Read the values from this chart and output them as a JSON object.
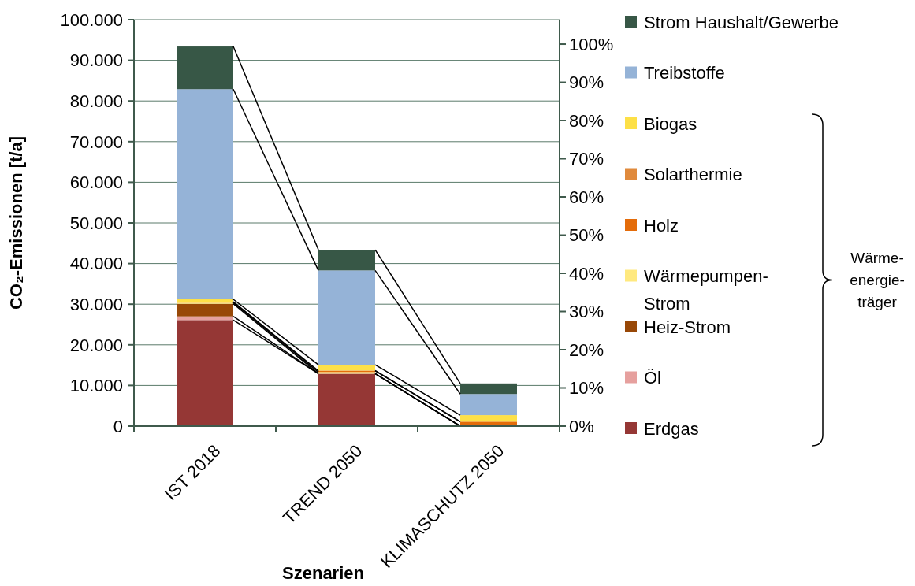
{
  "chart_data": {
    "type": "bar",
    "stacked": true,
    "xlabel": "Szenarien",
    "ylabel": "CO₂-Emissionen [t/a]",
    "categories": [
      "IST 2018",
      "TREND 2050",
      "KLIMASCHUTZ 2050"
    ],
    "series": [
      {
        "name": "Erdgas",
        "color": "#953735",
        "values": [
          26100,
          12900,
          0
        ]
      },
      {
        "name": "Öl",
        "color": "#e6a09e",
        "values": [
          900,
          0,
          0
        ]
      },
      {
        "name": "Heiz-Strom",
        "color": "#984807",
        "values": [
          3100,
          0,
          0
        ]
      },
      {
        "name": "Wärmepumpen-Strom",
        "color": "#ffe97f",
        "values": [
          300,
          400,
          null
        ]
      },
      {
        "name": "Holz",
        "color": "#e46c0a",
        "values": [
          200,
          300,
          1100
        ]
      },
      {
        "name": "Solarthermie",
        "color": "#e08a3c",
        "values": [
          null,
          100,
          0
        ]
      },
      {
        "name": "Biogas",
        "color": "#fde047",
        "values": [
          600,
          1400,
          1600
        ]
      },
      {
        "name": "Treibstoffe",
        "color": "#95b3d7",
        "values": [
          51700,
          23200,
          5200
        ]
      },
      {
        "name": "Strom Haushalt/Gewerbe",
        "color": "#375746",
        "values": [
          10500,
          5100,
          2600
        ]
      }
    ],
    "ylim": [
      0,
      100000
    ],
    "yticks": [
      {
        "value": 0,
        "label": "0"
      },
      {
        "value": 10000,
        "label": "10.000"
      },
      {
        "value": 20000,
        "label": "20.000"
      },
      {
        "value": 30000,
        "label": "30.000"
      },
      {
        "value": 40000,
        "label": "40.000"
      },
      {
        "value": 50000,
        "label": "50.000"
      },
      {
        "value": 60000,
        "label": "60.000"
      },
      {
        "value": 70000,
        "label": "70.000"
      },
      {
        "value": 80000,
        "label": "80.000"
      },
      {
        "value": 90000,
        "label": "90.000"
      },
      {
        "value": 100000,
        "label": "100.000"
      }
    ],
    "y2lim": [
      0,
      106.4
    ],
    "y2ticks": [
      {
        "value": 0,
        "label": "0%"
      },
      {
        "value": 10,
        "label": "10%"
      },
      {
        "value": 20,
        "label": "20%"
      },
      {
        "value": 30,
        "label": "30%"
      },
      {
        "value": 40,
        "label": "40%"
      },
      {
        "value": 50,
        "label": "50%"
      },
      {
        "value": 60,
        "label": "60%"
      },
      {
        "value": 70,
        "label": "70%"
      },
      {
        "value": 80,
        "label": "80%"
      },
      {
        "value": 90,
        "label": "90%"
      },
      {
        "value": 100,
        "label": "100%"
      }
    ],
    "grid": "y",
    "legend": "right",
    "annotations": [
      "Wärme-energie-träger"
    ]
  }
}
